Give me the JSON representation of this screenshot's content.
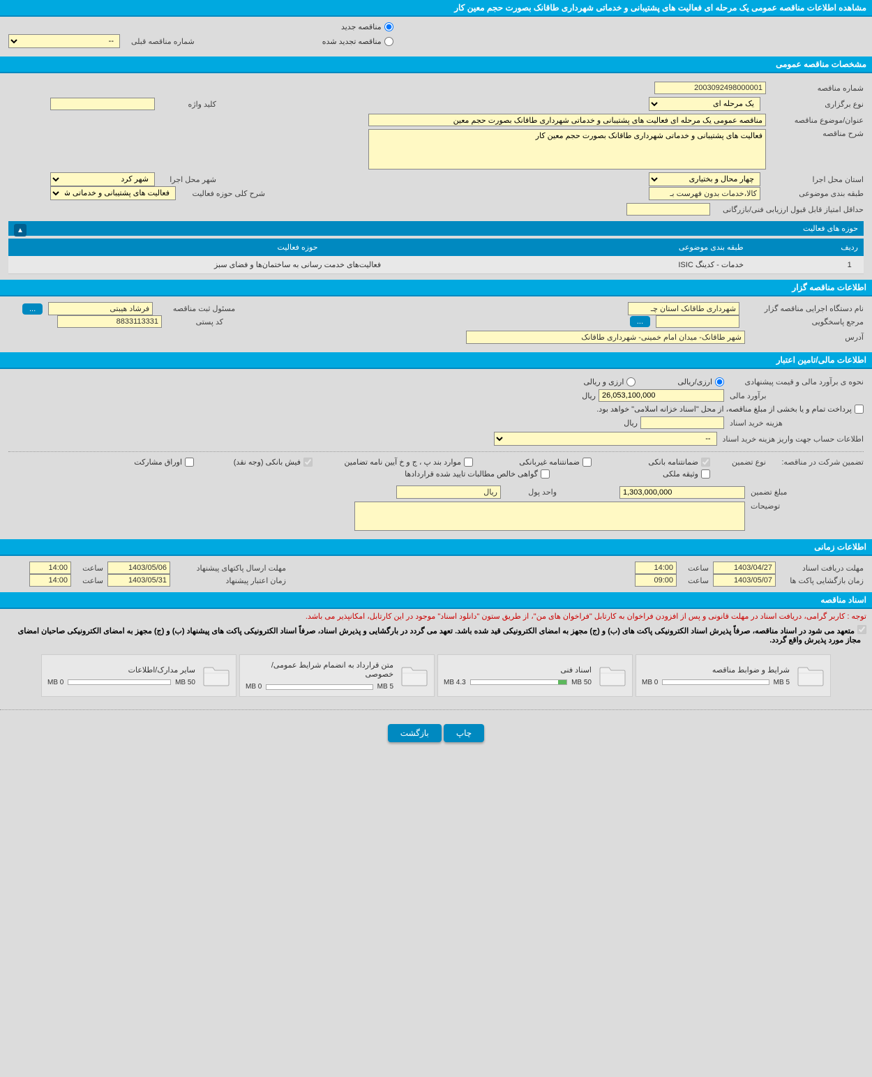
{
  "page_title": "مشاهده اطلاعات مناقصه عمومی یک مرحله ای فعالیت های پشتیبانی و خدماتی شهرداری طاقانک بصورت حجم معین کار",
  "tender_mode": {
    "new_label": "مناقصه جدید",
    "renewed_label": "مناقصه تجدید شده",
    "prev_number_label": "شماره مناقصه قبلی",
    "prev_number_value": "--"
  },
  "sections": {
    "general": "مشخصات مناقصه عمومی",
    "activities_title": "حوزه های فعالیت",
    "organizer": "اطلاعات مناقصه گزار",
    "financial": "اطلاعات مالی/تامین اعتبار",
    "timing": "اطلاعات زمانی",
    "documents": "اسناد مناقصه"
  },
  "general": {
    "tender_no_label": "شماره مناقصه",
    "tender_no": "2003092498000001",
    "type_label": "نوع برگزاری",
    "type_value": "یک مرحله ای",
    "keyword_label": "کلید واژه",
    "keyword_value": "",
    "subject_label": "عنوان/موضوع مناقصه",
    "subject_value": "مناقصه عمومی یک مرحله ای فعالیت های پشتیبانی و خدماتی شهرداری طاقانک بصورت حجم معین",
    "desc_label": "شرح مناقصه",
    "desc_value": "فعالیت های پشتیبانی و خدماتی شهرداری طاقانک بصورت حجم معین کار",
    "exec_province_label": "استان محل اجرا",
    "exec_province_value": "چهار محال و بختیاری",
    "exec_city_label": "شهر محل اجرا",
    "exec_city_value": "شهر کرد",
    "category_label": "طبقه بندی موضوعی",
    "category_value": "کالا،خدمات بدون فهرست بـ",
    "activity_scope_label": "شرح کلی حوزه فعالیت",
    "activity_scope_value": "فعالیت های پشتیبانی و خدماتی شهرداری طاقانک",
    "min_score_label": "حداقل امتیاز قابل قبول ارزیابی فنی/بازرگانی",
    "min_score_value": ""
  },
  "activities": {
    "col_row": "ردیف",
    "col_category": "طبقه بندی موضوعی",
    "col_domain": "حوزه فعالیت",
    "rows": [
      {
        "idx": "1",
        "category": "خدمات - کدینگ ISIC",
        "domain": "فعالیت‌های خدمت رسانی به ساختمان‌ها و فضای سبز"
      }
    ]
  },
  "organizer": {
    "org_label": "نام دستگاه اجرایی مناقصه گزار",
    "org_value": "شهرداری طاقانک استان چـ",
    "registrar_label": "مسئول ثبت مناقصه",
    "registrar_value": "فرشاد هیبتی",
    "contact_label": "مرجع پاسخگویی",
    "contact_value": "",
    "postal_label": "کد پستی",
    "postal_value": "8833113331",
    "address_label": "آدرس",
    "address_value": "شهر طاقانک- میدان امام خمینی- شهرداری طاقانک"
  },
  "financial": {
    "estimate_method_label": "نحوه ی برآورد مالی و قیمت پیشنهادی",
    "opt_rial": "ارزی/ریالی",
    "opt_both": "ارزی و ریالی",
    "estimate_label": "برآورد مالی",
    "estimate_value": "26,053,100,000",
    "currency": "ریال",
    "islamic_note": "پرداخت تمام و یا بخشی از مبلغ مناقصه، از محل \"اسناد خزانه اسلامی\" خواهد بود.",
    "doc_cost_label": "هزینه خرید اسناد",
    "doc_cost_value": "",
    "doc_cost_unit": "ریال",
    "account_info_label": "اطلاعات حساب جهت واریز هزینه خرید اسناد",
    "account_info_value": "--",
    "guarantee_title": "تضمین شرکت در مناقصه:",
    "guarantee_type_label": "نوع تضمین",
    "chk_bank_guarantee": "ضمانتنامه بانکی",
    "chk_nonbank_guarantee": "ضمانتنامه غیربانکی",
    "chk_regulation": "موارد بند پ ، ج و خ آیین نامه تضامین",
    "chk_bank_slip": "فیش بانکی (وجه نقد)",
    "chk_securities": "اوراق مشارکت",
    "chk_property": "وثیقه ملکی",
    "chk_receivables": "گواهی خالص مطالبات تایید شده قراردادها",
    "guarantee_amount_label": "مبلغ تضمین",
    "guarantee_amount_value": "1,303,000,000",
    "currency_unit_label": "واحد پول",
    "currency_unit_value": "ریال",
    "notes_label": "توضیحات",
    "notes_value": ""
  },
  "timing": {
    "doc_receive_label": "مهلت دریافت اسناد",
    "doc_receive_date": "1403/04/27",
    "doc_receive_time": "14:00",
    "envelope_send_label": "مهلت ارسال پاکتهای پیشنهاد",
    "envelope_send_date": "1403/05/06",
    "envelope_send_time": "14:00",
    "envelope_open_label": "زمان بازگشایی پاکت ها",
    "envelope_open_date": "1403/05/07",
    "envelope_open_time": "09:00",
    "validity_label": "زمان اعتبار پیشنهاد",
    "validity_date": "1403/05/31",
    "validity_time": "14:00",
    "time_label": "ساعت"
  },
  "documents": {
    "notice1": "توجه : کاربر گرامی، دریافت اسناد در مهلت قانونی و پس از افزودن فراخوان به کارتابل \"فراخوان های من\"، از طریق ستون \"دانلود اسناد\" موجود در این کارتابل، امکانپذیر می باشد.",
    "notice2": "متعهد می شود در اسناد مناقصه، صرفاً پذیرش اسناد الکترونیکی پاکت های (ب) و (ج) مجهز به امضای الکترونیکی قید شده باشد. تعهد می گردد در بارگشایی و پذیرش اسناد، صرفاً اسناد الکترونیکی پاکت های پیشنهاد (ب) و (ج) مجهز به امضای الکترونیکی صاحبان امضای مجاز مورد پذیرش واقع گردد.",
    "items": [
      {
        "title": "شرایط و ضوابط مناقصه",
        "used": "0 MB",
        "total": "5 MB",
        "fill_pct": 0
      },
      {
        "title": "اسناد فنی",
        "used": "4.3 MB",
        "total": "50 MB",
        "fill_pct": 9
      },
      {
        "title": "متن قرارداد به انضمام شرایط عمومی/خصوصی",
        "used": "0 MB",
        "total": "5 MB",
        "fill_pct": 0
      },
      {
        "title": "سایر مدارک/اطلاعات",
        "used": "0 MB",
        "total": "50 MB",
        "fill_pct": 0
      }
    ]
  },
  "footer": {
    "print": "چاپ",
    "back": "بازگشت"
  },
  "colors": {
    "header_bg": "#00a9e0",
    "field_bg": "#fff9c4",
    "page_bg": "#dcdcdc",
    "btn_bg": "#0089c0"
  }
}
